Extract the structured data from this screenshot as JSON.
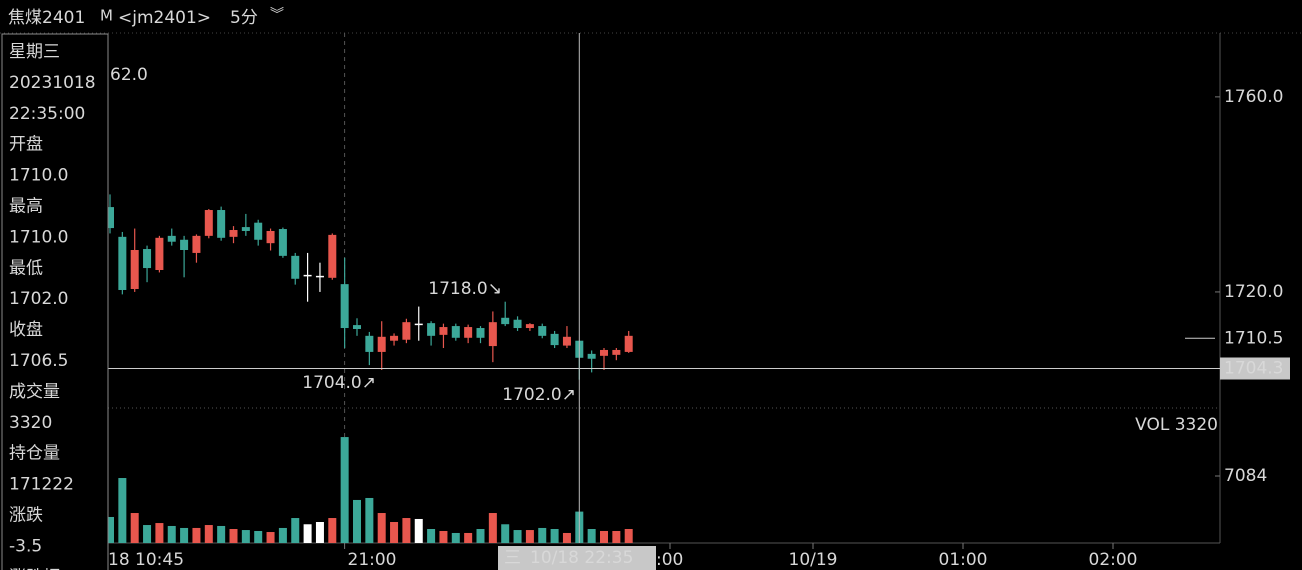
{
  "header": {
    "symbol": "焦煤2401",
    "flag": "M",
    "code": "<jm2401>",
    "period": "5分",
    "expand": "︾"
  },
  "sidebar": [
    {
      "text": "星期三",
      "color": "#e6e6e6"
    },
    {
      "text": "20231018",
      "color": "#e6e6e6"
    },
    {
      "text": "22:35:00",
      "color": "#e6e6e6"
    },
    {
      "text": "开盘",
      "color": "#e6e6e6"
    },
    {
      "text": "1710.0",
      "color": "#e8574e"
    },
    {
      "text": "最高",
      "color": "#e6e6e6"
    },
    {
      "text": "1710.0",
      "color": "#e8574e"
    },
    {
      "text": "最低",
      "color": "#e6e6e6"
    },
    {
      "text": "1702.0",
      "color": "#3ca899"
    },
    {
      "text": "收盘",
      "color": "#e6e6e6"
    },
    {
      "text": "1706.5",
      "color": "#3ca899"
    },
    {
      "text": "成交量",
      "color": "#e6e6e6"
    },
    {
      "text": "3320",
      "color": "#e6e6e6"
    },
    {
      "text": "持仓量",
      "color": "#e6e6e6"
    },
    {
      "text": "171222",
      "color": "#e6e6e6"
    },
    {
      "text": "涨跌",
      "color": "#e6e6e6"
    },
    {
      "text": "-3.5",
      "color": "#3ca899"
    },
    {
      "text": "涨跌幅",
      "color": "#e6e6e6"
    }
  ],
  "chart_data": {
    "type": "candlestick",
    "up_color": "#e8574e",
    "down_color": "#3ca899",
    "flat_color": "#ffffff",
    "open": [
      1737.4,
      1731.3,
      1720.6,
      1728.8,
      1724.5,
      1731.5,
      1730.7,
      1728,
      1731.5,
      1736.8,
      1731.3,
      1733.3,
      1734.2,
      1730,
      1732.9,
      1727.4,
      1723.5,
      1723.3,
      1722.9,
      1721.6,
      1713.2,
      1711,
      1707.7,
      1710,
      1710.2,
      1713.5,
      1713.6,
      1711.2,
      1713,
      1710.6,
      1712.6,
      1708.9,
      1714.7,
      1714.3,
      1712.6,
      1713,
      1711.4,
      1709,
      1710,
      1707.3,
      1706.9,
      1707.1,
      1707.7
    ],
    "high": [
      1740,
      1732.3,
      1733,
      1729.5,
      1731.5,
      1733,
      1731.5,
      1731.8,
      1737,
      1737.5,
      1733.5,
      1736,
      1734.8,
      1733,
      1733.2,
      1728,
      1728,
      1726,
      1732,
      1727,
      1714.6,
      1711.8,
      1714,
      1711.5,
      1714.5,
      1717,
      1714,
      1713.5,
      1713.5,
      1713.3,
      1713,
      1716,
      1718,
      1715,
      1713.6,
      1713.5,
      1712,
      1713,
      1710,
      1708,
      1708.5,
      1708.5,
      1712
    ],
    "low": [
      1732,
      1719.5,
      1720,
      1722,
      1724,
      1729.5,
      1723,
      1726,
      1731,
      1730.5,
      1730,
      1731.5,
      1729.5,
      1728.5,
      1727,
      1721.5,
      1718,
      1720,
      1722.5,
      1708.5,
      1711,
      1705,
      1704,
      1709,
      1709.5,
      1710,
      1709,
      1708.5,
      1710,
      1709.5,
      1709.5,
      1705.6,
      1713,
      1712,
      1712,
      1710.5,
      1708.5,
      1708.5,
      1702,
      1703.5,
      1704,
      1706,
      1707.5
    ],
    "close": [
      1733.1,
      1720.4,
      1728.6,
      1724.9,
      1731.1,
      1730.3,
      1728.6,
      1731.5,
      1736.8,
      1731.1,
      1732.7,
      1732.5,
      1730.7,
      1732.5,
      1727.4,
      1722.7,
      1723.5,
      1723.3,
      1731.7,
      1712.6,
      1712.4,
      1707.7,
      1710.8,
      1711,
      1713.8,
      1713.5,
      1711,
      1712.8,
      1710.6,
      1712.8,
      1710.6,
      1713.8,
      1713.4,
      1712.6,
      1713.4,
      1711,
      1709.1,
      1710.8,
      1706.5,
      1706.3,
      1708.1,
      1708.1,
      1711
    ],
    "volume": [
      2750,
      6870,
      3170,
      1900,
      2110,
      1800,
      1590,
      1590,
      1900,
      1800,
      1480,
      1370,
      1270,
      1160,
      1590,
      2640,
      1980,
      2220,
      2640,
      11200,
      4550,
      4760,
      3170,
      2220,
      2640,
      2540,
      1480,
      1270,
      1060,
      1060,
      1480,
      3170,
      1980,
      1370,
      1370,
      1590,
      1480,
      1060,
      3320,
      1480,
      1270,
      1270,
      1480
    ],
    "ylim": [
      1696.2,
      1773.1
    ],
    "yticks": [
      {
        "value": 1720,
        "label": "1720.0"
      },
      {
        "value": 1760,
        "label": "1760.0"
      }
    ],
    "last_price": {
      "value": 1710.5,
      "label": "1710.5"
    },
    "crosshair_price": {
      "value": 1704.3,
      "label": "1704.3"
    },
    "crosshair_weekday": "三",
    "crosshair_time": "10/18 22:35",
    "vlim": [
      0,
      13850
    ],
    "vticks": [
      7084
    ],
    "volume_label": "VOL 3320",
    "volume_label_color": "#3aa55c",
    "xlabels": [
      "18 10:45",
      "21:00",
      ":00",
      "10/19",
      "01:00",
      "02:00"
    ],
    "annotations": [
      {
        "text": "62.0",
        "color": "#e8574e"
      },
      {
        "text": "0↗",
        "color": "#3ca899"
      },
      {
        "text": "1704.0↗",
        "color": "#3ca899"
      },
      {
        "text": "1718.0↘",
        "color": "#e8574e"
      },
      {
        "text": "1702.0↗",
        "color": "#3ca899"
      }
    ]
  }
}
